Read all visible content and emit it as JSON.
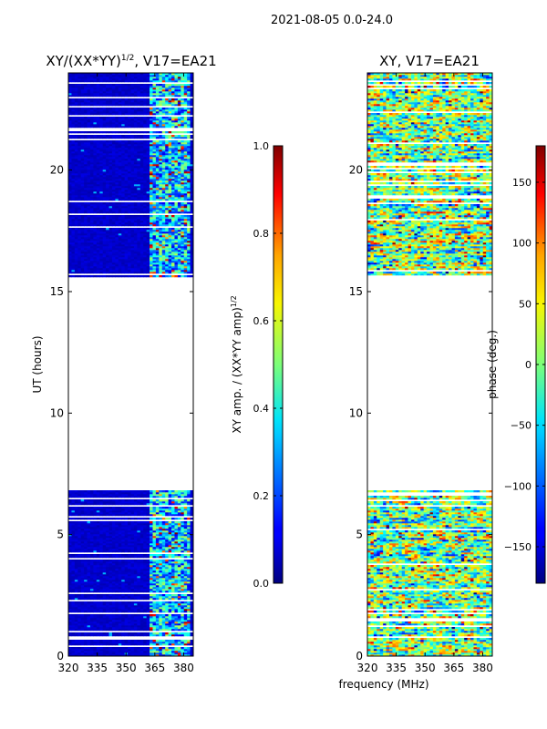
{
  "suptitle": "2021-08-05 0.0-24.0",
  "xlabel_shared": "frequency (MHz)",
  "chart_data": [
    {
      "type": "heatmap",
      "title_main": "XY/(XX*YY)",
      "title_sup": "1/2",
      "title_rest": ", V17=EA21",
      "xlabel": "",
      "ylabel": "UT (hours)",
      "xlim": [
        320,
        385
      ],
      "ylim": [
        0,
        24
      ],
      "xticks": [
        "320",
        "335",
        "350",
        "365",
        "380"
      ],
      "xtick_values": [
        320,
        335,
        350,
        365,
        380
      ],
      "yticks": [
        "0",
        "5",
        "10",
        "15",
        "20"
      ],
      "ytick_values": [
        0,
        5,
        10,
        15,
        20
      ],
      "data_time_ranges_hours": [
        [
          0.0,
          6.8
        ],
        [
          15.6,
          24.0
        ]
      ],
      "rfi_band_mhz": [
        362,
        383
      ],
      "colormap": "jet",
      "colorbar": {
        "label_main": "XY amp. / (XX*YY amp)",
        "label_sup": "1/2",
        "ticks": [
          "0.0",
          "0.2",
          "0.4",
          "0.6",
          "0.8",
          "1.0"
        ],
        "tick_values": [
          0.0,
          0.2,
          0.4,
          0.6,
          0.8,
          1.0
        ],
        "range": [
          0.0,
          1.0
        ]
      }
    },
    {
      "type": "heatmap",
      "title": "XY, V17=EA21",
      "xlabel": "",
      "ylabel": "",
      "xlim": [
        320,
        385
      ],
      "ylim": [
        0,
        24
      ],
      "xticks": [
        "320",
        "335",
        "350",
        "365",
        "380"
      ],
      "xtick_values": [
        320,
        335,
        350,
        365,
        380
      ],
      "yticks": [
        "0",
        "5",
        "10",
        "15",
        "20"
      ],
      "ytick_values": [
        0,
        5,
        10,
        15,
        20
      ],
      "data_time_ranges_hours": [
        [
          0.0,
          6.8
        ],
        [
          15.6,
          24.0
        ]
      ],
      "colormap": "jet",
      "colorbar": {
        "label": "phase (deg.)",
        "ticks": [
          "150",
          "100",
          "50",
          "0",
          "−50",
          "−100",
          "−150"
        ],
        "tick_values": [
          150,
          100,
          50,
          0,
          -50,
          -100,
          -150
        ],
        "range": [
          -180,
          180
        ]
      }
    }
  ]
}
